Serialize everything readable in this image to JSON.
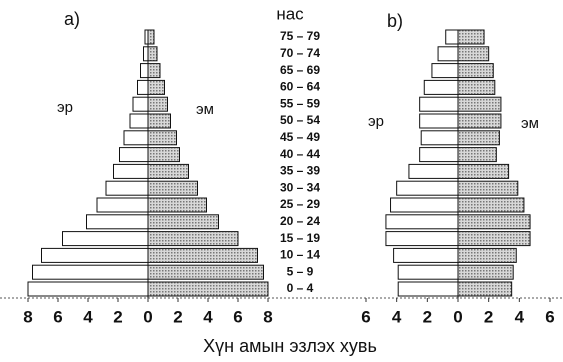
{
  "chart_data": [
    {
      "type": "pyramid",
      "title": "а)",
      "ylabel": "нас",
      "xlabel": "Хүн амын эзлэх хувь",
      "categories": [
        "0 – 4",
        "5 – 9",
        "10 – 14",
        "15 – 19",
        "20 – 24",
        "25 – 29",
        "30 – 34",
        "35 – 39",
        "40 – 44",
        "45 – 49",
        "50 – 54",
        "55 – 59",
        "60 – 64",
        "65 – 69",
        "70 – 74",
        "75 – 79"
      ],
      "xlim": [
        -8,
        8
      ],
      "xticks": [
        {
          "value": -8,
          "label": "8"
        },
        {
          "value": -6,
          "label": "6"
        },
        {
          "value": -4,
          "label": "4"
        },
        {
          "value": -2,
          "label": "2"
        },
        0,
        2,
        4,
        6,
        8
      ],
      "series": [
        {
          "name": "эр",
          "color": "#ffffff",
          "values": [
            -8.0,
            -7.7,
            -7.1,
            -5.7,
            -4.1,
            -3.4,
            -2.8,
            -2.3,
            -1.9,
            -1.6,
            -1.2,
            -1.0,
            -0.7,
            -0.5,
            -0.3,
            -0.2
          ]
        },
        {
          "name": "эм",
          "color": "#b8b8b8",
          "values": [
            8.0,
            7.7,
            7.3,
            6.0,
            4.7,
            3.9,
            3.3,
            2.7,
            2.1,
            1.9,
            1.5,
            1.3,
            1.1,
            0.8,
            0.6,
            0.4
          ]
        }
      ]
    },
    {
      "type": "pyramid",
      "title": "b)",
      "xlim": [
        -6,
        6
      ],
      "xticks": [
        {
          "value": -6,
          "label": "6"
        },
        {
          "value": -4,
          "label": "4"
        },
        {
          "value": -2,
          "label": "2"
        },
        0,
        2,
        4,
        6
      ],
      "series": [
        {
          "name": "эр",
          "color": "#ffffff",
          "values": [
            -3.9,
            -3.9,
            -4.2,
            -4.7,
            -4.7,
            -4.4,
            -4.0,
            -3.2,
            -2.5,
            -2.4,
            -2.5,
            -2.5,
            -2.2,
            -1.7,
            -1.3,
            -0.8
          ]
        },
        {
          "name": "эм",
          "color": "#b8b8b8",
          "values": [
            3.5,
            3.6,
            3.8,
            4.7,
            4.7,
            4.3,
            3.9,
            3.3,
            2.5,
            2.7,
            2.8,
            2.8,
            2.4,
            2.3,
            2.0,
            1.7
          ]
        }
      ]
    }
  ]
}
